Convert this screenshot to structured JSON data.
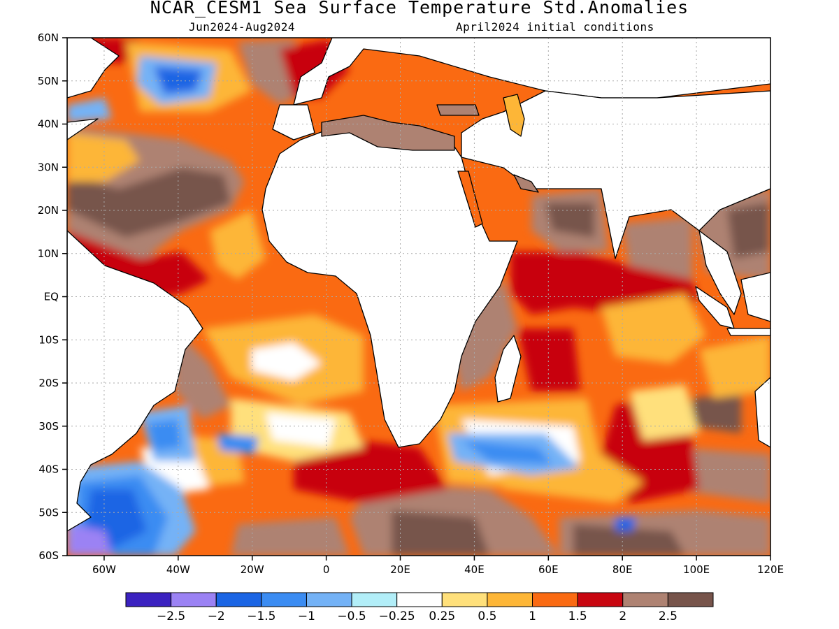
{
  "title": "NCAR_CESM1 Sea Surface Temperature Std.Anomalies",
  "subtitle_left": "Jun2024-Aug2024",
  "subtitle_right": "April2024 initial conditions",
  "map": {
    "lon_range": [
      -70,
      120
    ],
    "lat_range": [
      -60,
      60
    ],
    "lat_ticks": [
      {
        "value": 60,
        "label": "60N"
      },
      {
        "value": 50,
        "label": "50N"
      },
      {
        "value": 40,
        "label": "40N"
      },
      {
        "value": 30,
        "label": "30N"
      },
      {
        "value": 20,
        "label": "20N"
      },
      {
        "value": 10,
        "label": "10N"
      },
      {
        "value": 0,
        "label": "EQ"
      },
      {
        "value": -10,
        "label": "10S"
      },
      {
        "value": -20,
        "label": "20S"
      },
      {
        "value": -30,
        "label": "30S"
      },
      {
        "value": -40,
        "label": "40S"
      },
      {
        "value": -50,
        "label": "50S"
      },
      {
        "value": -60,
        "label": "60S"
      }
    ],
    "lon_ticks": [
      {
        "value": -60,
        "label": "60W"
      },
      {
        "value": -40,
        "label": "40W"
      },
      {
        "value": -20,
        "label": "20W"
      },
      {
        "value": 0,
        "label": "0"
      },
      {
        "value": 20,
        "label": "20E"
      },
      {
        "value": 40,
        "label": "40E"
      },
      {
        "value": 60,
        "label": "60E"
      },
      {
        "value": 80,
        "label": "80E"
      },
      {
        "value": 100,
        "label": "100E"
      },
      {
        "value": 120,
        "label": "120E"
      }
    ],
    "gridlines": true
  },
  "colorbar": {
    "colors": [
      "#3b22c0",
      "#9b82f4",
      "#1b65e4",
      "#3b8cf2",
      "#74b2f6",
      "#b2eef8",
      "#ffffff",
      "#ffe07b",
      "#fdb637",
      "#fa6a12",
      "#c80610",
      "#ae8272",
      "#77544b"
    ],
    "labels": [
      "-2.5",
      "-2",
      "-1.5",
      "-1",
      "-0.5",
      "-0.25",
      "0.25",
      "0.5",
      "1",
      "1.5",
      "2",
      "2.5"
    ]
  },
  "land_color": "#ffffff"
}
